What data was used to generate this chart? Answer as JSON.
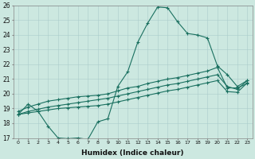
{
  "xlabel": "Humidex (Indice chaleur)",
  "xlim": [
    -0.5,
    23.5
  ],
  "ylim": [
    17,
    26
  ],
  "background_color": "#cce8e0",
  "grid_color": "#aacccc",
  "line_color": "#1a7060",
  "xticks": [
    0,
    1,
    2,
    3,
    4,
    5,
    6,
    7,
    8,
    9,
    10,
    11,
    12,
    13,
    14,
    15,
    16,
    17,
    18,
    19,
    20,
    21,
    22,
    23
  ],
  "yticks": [
    17,
    18,
    19,
    20,
    21,
    22,
    23,
    24,
    25,
    26
  ],
  "line1_x": [
    0,
    1,
    2,
    3,
    4,
    5,
    6,
    7,
    8,
    9,
    10,
    11,
    12,
    13,
    14,
    15,
    16,
    17,
    18,
    19,
    20,
    21,
    22,
    23
  ],
  "line1_y": [
    18.6,
    19.3,
    18.8,
    17.8,
    17.0,
    16.95,
    17.0,
    16.9,
    18.1,
    18.3,
    20.5,
    21.5,
    23.5,
    24.8,
    25.9,
    25.85,
    24.9,
    24.1,
    24.0,
    23.8,
    21.9,
    21.3,
    20.5,
    20.9
  ],
  "line2_x": [
    0,
    1,
    2,
    3,
    4,
    5,
    6,
    7,
    8,
    9,
    10,
    11,
    12,
    13,
    14,
    15,
    16,
    17,
    18,
    19,
    20,
    21,
    22,
    23
  ],
  "line2_y": [
    18.8,
    19.1,
    19.3,
    19.5,
    19.6,
    19.7,
    19.8,
    19.85,
    19.9,
    20.0,
    20.2,
    20.4,
    20.5,
    20.7,
    20.85,
    21.0,
    21.1,
    21.25,
    21.4,
    21.55,
    21.8,
    20.4,
    20.4,
    20.7
  ],
  "line3_x": [
    0,
    1,
    2,
    3,
    4,
    5,
    6,
    7,
    8,
    9,
    10,
    11,
    12,
    13,
    14,
    15,
    16,
    17,
    18,
    19,
    20,
    21,
    22,
    23
  ],
  "line3_y": [
    18.6,
    18.8,
    18.95,
    19.1,
    19.2,
    19.3,
    19.4,
    19.5,
    19.6,
    19.7,
    19.85,
    20.0,
    20.15,
    20.3,
    20.45,
    20.6,
    20.7,
    20.85,
    21.0,
    21.15,
    21.3,
    20.5,
    20.3,
    20.9
  ],
  "line4_x": [
    0,
    1,
    2,
    3,
    4,
    5,
    6,
    7,
    8,
    9,
    10,
    11,
    12,
    13,
    14,
    15,
    16,
    17,
    18,
    19,
    20,
    21,
    22,
    23
  ],
  "line4_y": [
    18.6,
    18.7,
    18.8,
    18.9,
    19.0,
    19.05,
    19.1,
    19.15,
    19.2,
    19.3,
    19.45,
    19.6,
    19.75,
    19.9,
    20.05,
    20.2,
    20.3,
    20.45,
    20.6,
    20.75,
    20.9,
    20.15,
    20.1,
    20.75
  ]
}
